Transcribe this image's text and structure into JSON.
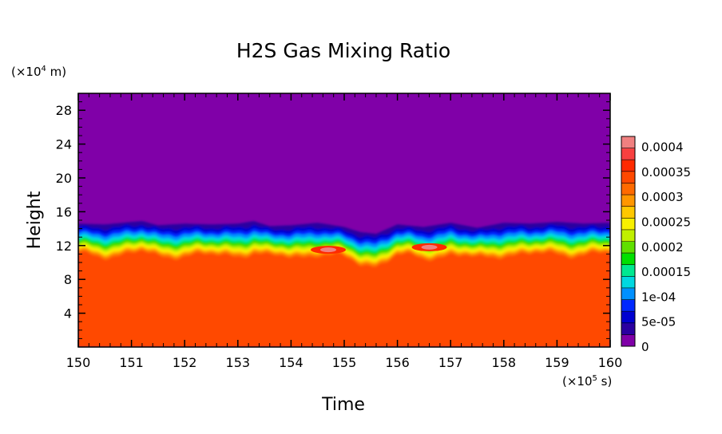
{
  "chart_data": {
    "type": "heatmap",
    "title": "H2S Gas Mixing Ratio",
    "xlabel": "Time",
    "ylabel": "Height",
    "x_unit_base": "(×10",
    "x_unit_exp": "5",
    "x_unit_tail": " s)",
    "y_unit_base": "(×10",
    "y_unit_exp": "4",
    "y_unit_tail": " m)",
    "xlim": [
      150,
      160
    ],
    "ylim": [
      0,
      30
    ],
    "x_ticks": [
      "150",
      "151",
      "152",
      "153",
      "154",
      "155",
      "156",
      "157",
      "158",
      "159",
      "160"
    ],
    "y_ticks": [
      "4",
      "8",
      "12",
      "16",
      "20",
      "24",
      "28"
    ],
    "y_tick_values": [
      4,
      8,
      12,
      16,
      20,
      24,
      28
    ],
    "colorbar": {
      "range": [
        0,
        0.00042
      ],
      "tick_labels": [
        "0",
        "5e-05",
        "1e-04",
        "0.00015",
        "0.0002",
        "0.00025",
        "0.0003",
        "0.00035",
        "0.0004"
      ],
      "tick_values": [
        0,
        5e-05,
        0.0001,
        0.00015,
        0.0002,
        0.00025,
        0.0003,
        0.00035,
        0.0004
      ],
      "colors": [
        "#8000a8",
        "#2a00a0",
        "#0000d0",
        "#0028ff",
        "#0090ff",
        "#00d8e0",
        "#00e890",
        "#00e000",
        "#60e000",
        "#c0f000",
        "#f8f000",
        "#ffc800",
        "#ff9600",
        "#ff6a00",
        "#ff4800",
        "#ff2a00",
        "#f84040",
        "#f08080"
      ]
    },
    "field_description": "Vertical profile: near-zero mixing ratio above the top boundary (about 13-15 x10^4 m), sharp gradient down to about 0.00037 below about 11 x10^4 m; local peaks near 0.0004 around t=154.6-154.8 and 156.4-156.7.",
    "top_boundary": {
      "x": [
        150.0,
        150.5,
        151.0,
        151.2,
        151.5,
        152.0,
        152.5,
        153.0,
        153.3,
        153.6,
        154.0,
        154.5,
        155.0,
        155.3,
        155.6,
        156.0,
        156.5,
        157.0,
        157.5,
        158.0,
        158.5,
        159.0,
        159.5,
        160.0
      ],
      "y": [
        14.6,
        14.5,
        14.8,
        14.9,
        14.4,
        14.6,
        14.5,
        14.6,
        14.9,
        14.3,
        14.4,
        14.7,
        14.2,
        13.6,
        13.4,
        14.5,
        14.2,
        14.7,
        14.1,
        14.7,
        14.6,
        14.8,
        14.6,
        14.7
      ]
    },
    "hotspots": [
      {
        "x": 154.7,
        "y": 11.5,
        "value": 0.0004
      },
      {
        "x": 156.6,
        "y": 11.8,
        "value": 0.0004
      }
    ]
  }
}
